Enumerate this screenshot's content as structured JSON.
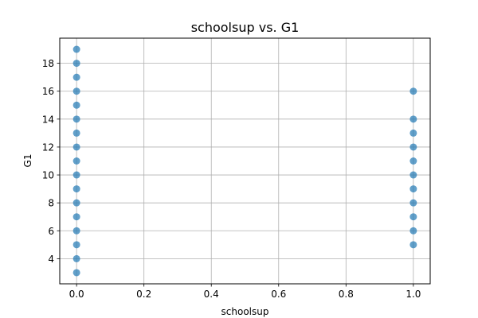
{
  "chart_data": {
    "type": "scatter",
    "title": "schoolsup vs. G1",
    "xlabel": "schoolsup",
    "ylabel": "G1",
    "xlim": [
      -0.05,
      1.05
    ],
    "ylim": [
      2.2,
      19.8
    ],
    "xticks": [
      0.0,
      0.2,
      0.4,
      0.6,
      0.8,
      1.0
    ],
    "xtick_labels": [
      "0.0",
      "0.2",
      "0.4",
      "0.6",
      "0.8",
      "1.0"
    ],
    "yticks": [
      4,
      6,
      8,
      10,
      12,
      14,
      16,
      18
    ],
    "ytick_labels": [
      "4",
      "6",
      "8",
      "10",
      "12",
      "14",
      "16",
      "18"
    ],
    "grid": true,
    "legend": "none",
    "series": [
      {
        "color": "#1f77b4",
        "opacity": 0.7,
        "points": [
          {
            "x": 0,
            "y": 3
          },
          {
            "x": 0,
            "y": 4
          },
          {
            "x": 0,
            "y": 5
          },
          {
            "x": 0,
            "y": 6
          },
          {
            "x": 0,
            "y": 7
          },
          {
            "x": 0,
            "y": 8
          },
          {
            "x": 0,
            "y": 9
          },
          {
            "x": 0,
            "y": 10
          },
          {
            "x": 0,
            "y": 11
          },
          {
            "x": 0,
            "y": 12
          },
          {
            "x": 0,
            "y": 13
          },
          {
            "x": 0,
            "y": 14
          },
          {
            "x": 0,
            "y": 15
          },
          {
            "x": 0,
            "y": 16
          },
          {
            "x": 0,
            "y": 17
          },
          {
            "x": 0,
            "y": 18
          },
          {
            "x": 0,
            "y": 19
          },
          {
            "x": 1,
            "y": 5
          },
          {
            "x": 1,
            "y": 6
          },
          {
            "x": 1,
            "y": 7
          },
          {
            "x": 1,
            "y": 8
          },
          {
            "x": 1,
            "y": 9
          },
          {
            "x": 1,
            "y": 10
          },
          {
            "x": 1,
            "y": 11
          },
          {
            "x": 1,
            "y": 12
          },
          {
            "x": 1,
            "y": 13
          },
          {
            "x": 1,
            "y": 14
          },
          {
            "x": 1,
            "y": 16
          }
        ]
      }
    ]
  }
}
